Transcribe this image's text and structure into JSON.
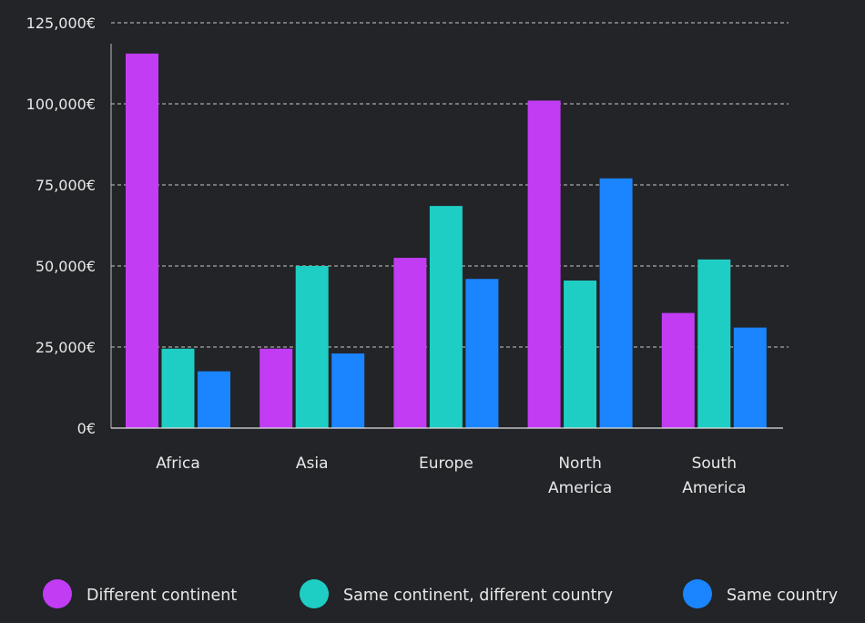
{
  "chart_data": {
    "type": "bar",
    "categories": [
      [
        "Africa"
      ],
      [
        "Asia"
      ],
      [
        "Europe"
      ],
      [
        "North",
        "America"
      ],
      [
        "South",
        "America"
      ]
    ],
    "series": [
      {
        "name": "Different continent",
        "color": "#c23cf4",
        "values": [
          115500,
          24500,
          52500,
          101000,
          35500
        ]
      },
      {
        "name": "Same continent, different country",
        "color": "#1ecec4",
        "values": [
          24500,
          50000,
          68500,
          45500,
          52000
        ]
      },
      {
        "name": "Same country",
        "color": "#1a85ff",
        "values": [
          17500,
          23000,
          46000,
          77000,
          31000
        ]
      }
    ],
    "y_ticks": [
      "0€",
      "25,000€",
      "50,000€",
      "75,000€",
      "100,000€",
      "125,000€"
    ],
    "ylim": [
      0,
      125000
    ],
    "grid": true,
    "legend_position": "bottom"
  }
}
